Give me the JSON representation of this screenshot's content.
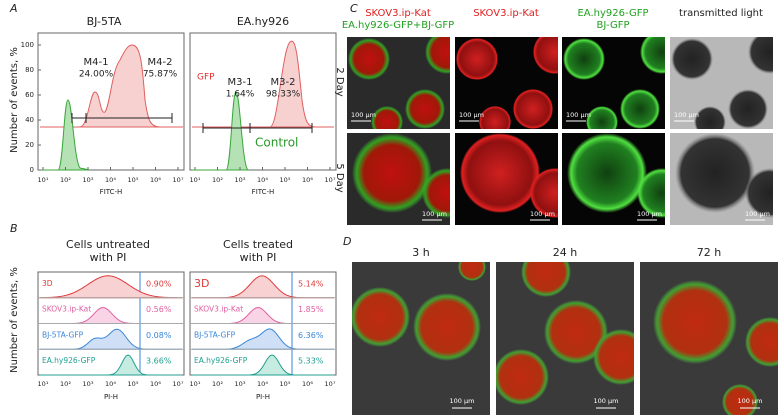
{
  "panel_a": {
    "label": "A",
    "y_label": "Number of events, %",
    "x_label": "FITC-H",
    "y_ticks": [
      "0",
      "20",
      "40",
      "60",
      "80",
      "100"
    ],
    "x_ticks": [
      "10¹",
      "10²",
      "10³",
      "10⁴",
      "10⁵",
      "10⁶",
      "10⁷"
    ],
    "plots": [
      {
        "title": "BJ-5TA",
        "gates": [
          {
            "name": "M4-1",
            "percent": "24.00%"
          },
          {
            "name": "M4-2",
            "percent": "75.87%"
          }
        ]
      },
      {
        "title": "EA.hy926",
        "marker": "GFP",
        "control": "Control",
        "gates": [
          {
            "name": "M3-1",
            "percent": "1.64%"
          },
          {
            "name": "M3-2",
            "percent": "98.33%"
          }
        ]
      }
    ]
  },
  "panel_b": {
    "label": "B",
    "y_label": "Number of events, %",
    "x_label": "PI-H",
    "x_ticks": [
      "10¹",
      "10²",
      "10³",
      "10⁴",
      "10⁵",
      "10⁶",
      "10⁷"
    ],
    "plots": [
      {
        "title": [
          "Cells untreated",
          "with PI"
        ],
        "rows": [
          {
            "name": "3D",
            "percent": "0.90%"
          },
          {
            "name": "SKOV3.ip-Kat",
            "percent": "0.56%"
          },
          {
            "name": "BJ-5TA-GFP",
            "percent": "0.08%"
          },
          {
            "name": "EA.hy926-GFP",
            "percent": "3.66%"
          }
        ]
      },
      {
        "title": [
          "Cells treated",
          "with PI"
        ],
        "rows": [
          {
            "name": "3D",
            "percent": "5.14%"
          },
          {
            "name": "SKOV3.ip-Kat",
            "percent": "1.85%"
          },
          {
            "name": "BJ-5TA-GFP",
            "percent": "6.36%"
          },
          {
            "name": "EA.hy926-GFP",
            "percent": "5.33%"
          }
        ]
      }
    ]
  },
  "panel_c": {
    "label": "C",
    "columns": [
      [
        "SKOV3.ip-Kat",
        "EA.hy926-GFP+BJ-GFP"
      ],
      [
        "SKOV3.ip-Kat"
      ],
      [
        "EA.hy926-GFP",
        "BJ-GFP"
      ],
      [
        "transmitted light"
      ]
    ],
    "rows": [
      "2 Day",
      "5 Day"
    ],
    "scale": "100 µm"
  },
  "panel_d": {
    "label": "D",
    "times": [
      "3 h",
      "24 h",
      "72 h"
    ],
    "scale": "100 µm"
  }
}
